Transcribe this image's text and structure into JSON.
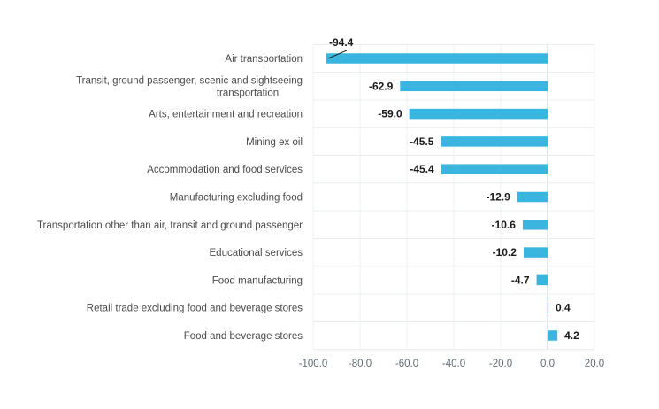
{
  "chart_data": {
    "type": "bar",
    "orientation": "horizontal",
    "categories": [
      "Air transportation",
      "Transit, ground passenger, scenic and sightseeing transportation",
      "Arts, entertainment and recreation",
      "Mining ex oil",
      "Accommodation and food services",
      "Manufacturing excluding food",
      "Transportation other than air, transit and ground passenger",
      "Educational services",
      "Food manufacturing",
      "Retail trade excluding food and beverage stores",
      "Food and beverage stores"
    ],
    "category_lines": [
      [
        "Air transportation"
      ],
      [
        "Transit, ground passenger, scenic and sightseeing",
        "transportation"
      ],
      [
        "Arts, entertainment and recreation"
      ],
      [
        "Mining ex oil"
      ],
      [
        "Accommodation and food services"
      ],
      [
        "Manufacturing excluding food"
      ],
      [
        "Transportation other than air, transit and ground passenger"
      ],
      [
        "Educational services"
      ],
      [
        "Food manufacturing"
      ],
      [
        "Retail trade excluding food and beverage stores"
      ],
      [
        "Food and beverage stores"
      ]
    ],
    "values": [
      -94.4,
      -62.9,
      -59.0,
      -45.5,
      -45.4,
      -12.9,
      -10.6,
      -10.2,
      -4.7,
      0.4,
      4.2
    ],
    "value_labels": [
      "-94.4",
      "-62.9",
      "-59.0",
      "-45.5",
      "-45.4",
      "-12.9",
      "-10.6",
      "-10.2",
      "-4.7",
      "0.4",
      "4.2"
    ],
    "xlim": [
      -100.0,
      20.0
    ],
    "x_ticks": [
      -100.0,
      -80.0,
      -60.0,
      -40.0,
      -20.0,
      0.0,
      20.0
    ],
    "x_tick_labels": [
      "-100.0",
      "-80.0",
      "-60.0",
      "-40.0",
      "-20.0",
      "0.0",
      "20.0"
    ],
    "title": "",
    "xlabel": "",
    "ylabel": "",
    "grid": true,
    "legend": "none",
    "colors": {
      "bar": "#3ab5df",
      "value_text": "#1a1a1a",
      "category_text": "#4a4a4a",
      "tick_text": "#5f6b73",
      "grid": "#eef2f4",
      "row_separator": "#e8ecef",
      "zero_line": "#c9d2d8"
    }
  }
}
